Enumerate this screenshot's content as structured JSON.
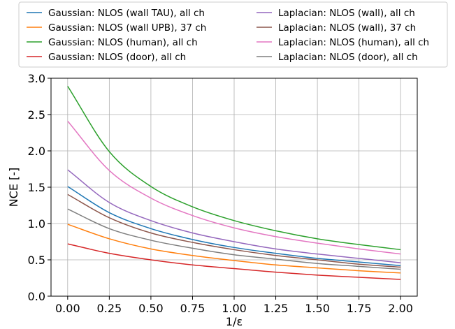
{
  "chart_data": {
    "type": "line",
    "xlabel": "1/ε",
    "ylabel": "NCE [-]",
    "xlim": [
      -0.1,
      2.1
    ],
    "ylim": [
      0.0,
      3.0
    ],
    "xticks": [
      "0.00",
      "0.25",
      "0.50",
      "0.75",
      "1.00",
      "1.25",
      "1.50",
      "1.75",
      "2.00"
    ],
    "xtick_values": [
      0,
      0.25,
      0.5,
      0.75,
      1.0,
      1.25,
      1.5,
      1.75,
      2.0
    ],
    "yticks": [
      "0.0",
      "0.5",
      "1.0",
      "1.5",
      "2.0",
      "2.5",
      "3.0"
    ],
    "ytick_values": [
      0,
      0.5,
      1.0,
      1.5,
      2.0,
      2.5,
      3.0
    ],
    "grid": true,
    "legend_position": "top",
    "x": [
      0.0,
      0.25,
      0.5,
      0.75,
      1.0,
      1.25,
      1.5,
      1.75,
      2.0
    ],
    "series": [
      {
        "name": "Gaussian: NLOS (wall TAU), all ch",
        "color": "#1f77b4",
        "values": [
          1.51,
          1.15,
          0.93,
          0.78,
          0.67,
          0.59,
          0.52,
          0.47,
          0.42
        ]
      },
      {
        "name": "Gaussian: NLOS (wall UPB), 37 ch",
        "color": "#ff7f0e",
        "values": [
          0.99,
          0.79,
          0.65,
          0.56,
          0.49,
          0.43,
          0.39,
          0.35,
          0.32
        ]
      },
      {
        "name": "Gaussian: NLOS (human), all ch",
        "color": "#2ca02c",
        "values": [
          2.89,
          1.99,
          1.51,
          1.23,
          1.04,
          0.9,
          0.79,
          0.71,
          0.64
        ]
      },
      {
        "name": "Gaussian: NLOS (door), all ch",
        "color": "#d62728",
        "values": [
          0.72,
          0.59,
          0.5,
          0.43,
          0.38,
          0.33,
          0.29,
          0.26,
          0.23
        ]
      },
      {
        "name": "Laplacian: NLOS (wall), all ch",
        "color": "#9467bd",
        "values": [
          1.74,
          1.29,
          1.04,
          0.87,
          0.75,
          0.65,
          0.58,
          0.52,
          0.46
        ]
      },
      {
        "name": "Laplacian: NLOS (wall), 37 ch",
        "color": "#8c564b",
        "values": [
          1.4,
          1.08,
          0.87,
          0.74,
          0.64,
          0.56,
          0.5,
          0.44,
          0.4
        ]
      },
      {
        "name": "Laplacian: NLOS (human), all ch",
        "color": "#e377c2",
        "values": [
          2.41,
          1.73,
          1.35,
          1.11,
          0.94,
          0.82,
          0.73,
          0.65,
          0.58
        ]
      },
      {
        "name": "Laplacian: NLOS (door), all ch",
        "color": "#7f7f7f",
        "values": [
          1.2,
          0.93,
          0.77,
          0.66,
          0.57,
          0.51,
          0.45,
          0.41,
          0.37
        ]
      }
    ]
  }
}
